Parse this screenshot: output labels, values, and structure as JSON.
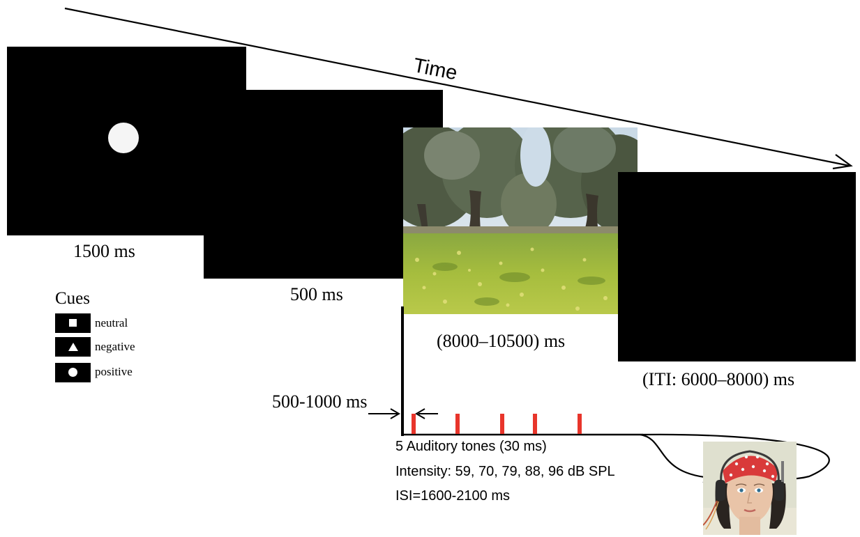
{
  "timeline": {
    "time_label": "Time"
  },
  "screens": {
    "cue": {
      "duration": "1500 ms",
      "shape": "circle"
    },
    "blank": {
      "duration": "500 ms"
    },
    "picture": {
      "duration": "(8000–10500) ms",
      "content": "olive-grove-photo"
    },
    "iti": {
      "duration": "(ITI: 6000–8000) ms"
    }
  },
  "cues_legend": {
    "title": "Cues",
    "items": [
      {
        "shape": "square",
        "label": "neutral"
      },
      {
        "shape": "triangle",
        "label": "negative"
      },
      {
        "shape": "circle",
        "label": "positive"
      }
    ]
  },
  "tones": {
    "onset_label": "500-1000 ms",
    "count": 5,
    "line1": "5 Auditory tones  (30 ms)",
    "line2": "Intensity: 59, 70, 79, 88, 96 dB SPL",
    "line3": "ISI=1600-2100 ms",
    "tick_color": "#e8352b"
  },
  "colors": {
    "screen": "#000000",
    "tone_tick": "#e8352b",
    "headband": "#d93a3a"
  }
}
